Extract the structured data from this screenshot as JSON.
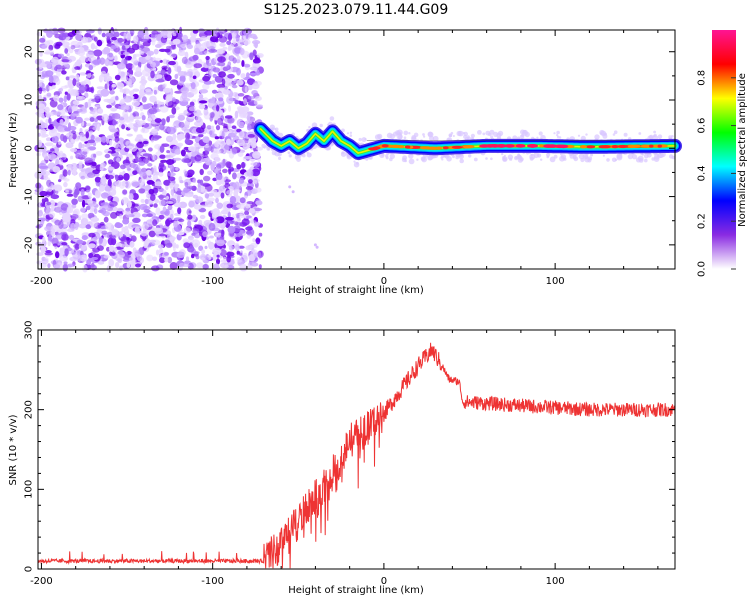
{
  "title": "S125.2023.079.11.44.G09",
  "chart_data": [
    {
      "type": "heatmap",
      "xlabel": "Height of straight line (km)",
      "ylabel": "Frequency (Hz)",
      "xlim": [
        -202,
        170
      ],
      "ylim": [
        -25,
        24.5
      ],
      "x_ticks": [
        -200,
        -100,
        0,
        100
      ],
      "y_ticks": [
        -20,
        -10,
        0,
        10,
        20
      ],
      "noise_region_x": [
        -202,
        -72
      ],
      "ridge": [
        {
          "x": -72,
          "y": 4
        },
        {
          "x": -65,
          "y": 1.5
        },
        {
          "x": -60,
          "y": 0.5
        },
        {
          "x": -55,
          "y": 1.5
        },
        {
          "x": -50,
          "y": 0
        },
        {
          "x": -45,
          "y": 1
        },
        {
          "x": -40,
          "y": 3
        },
        {
          "x": -35,
          "y": 1.5
        },
        {
          "x": -30,
          "y": 3.5
        },
        {
          "x": -25,
          "y": 1.5
        },
        {
          "x": -20,
          "y": 0.5
        },
        {
          "x": -15,
          "y": -1
        },
        {
          "x": -10,
          "y": -0.5
        },
        {
          "x": 0,
          "y": 0.5
        },
        {
          "x": 30,
          "y": 0
        },
        {
          "x": 60,
          "y": 0.5
        },
        {
          "x": 90,
          "y": 0.5
        },
        {
          "x": 120,
          "y": 0.3
        },
        {
          "x": 170,
          "y": 0.5
        }
      ],
      "colorbar": {
        "label": "Normalized spectral amplitude",
        "range": [
          0,
          1
        ],
        "ticks": [
          "0.0",
          "0.2",
          "0.4",
          "0.6",
          "0.8"
        ],
        "tick_values": [
          0,
          0.2,
          0.4,
          0.6,
          0.8
        ],
        "colors": [
          "#ffffff",
          "#8a2be2",
          "#0000ff",
          "#00ffff",
          "#00ff00",
          "#ffff00",
          "#ff0000",
          "#ff1493"
        ]
      }
    },
    {
      "type": "line",
      "xlabel": "Height of straight line (km)",
      "ylabel": "SNR (10 * v/v)",
      "xlim": [
        -202,
        170
      ],
      "ylim": [
        0,
        300
      ],
      "x_ticks": [
        -200,
        -100,
        0,
        100
      ],
      "y_ticks": [
        0,
        100,
        200,
        300
      ],
      "color": "#ee3333",
      "trend": [
        {
          "x": -202,
          "y": 10
        },
        {
          "x": -70,
          "y": 10
        },
        {
          "x": -60,
          "y": 30
        },
        {
          "x": -50,
          "y": 60
        },
        {
          "x": -40,
          "y": 90
        },
        {
          "x": -30,
          "y": 120
        },
        {
          "x": -20,
          "y": 160
        },
        {
          "x": -10,
          "y": 175
        },
        {
          "x": 0,
          "y": 195
        },
        {
          "x": 10,
          "y": 225
        },
        {
          "x": 20,
          "y": 255
        },
        {
          "x": 28,
          "y": 275
        },
        {
          "x": 34,
          "y": 255
        },
        {
          "x": 38,
          "y": 238
        },
        {
          "x": 44,
          "y": 235
        },
        {
          "x": 46,
          "y": 210
        },
        {
          "x": 80,
          "y": 205
        },
        {
          "x": 120,
          "y": 200
        },
        {
          "x": 170,
          "y": 200
        }
      ]
    }
  ]
}
